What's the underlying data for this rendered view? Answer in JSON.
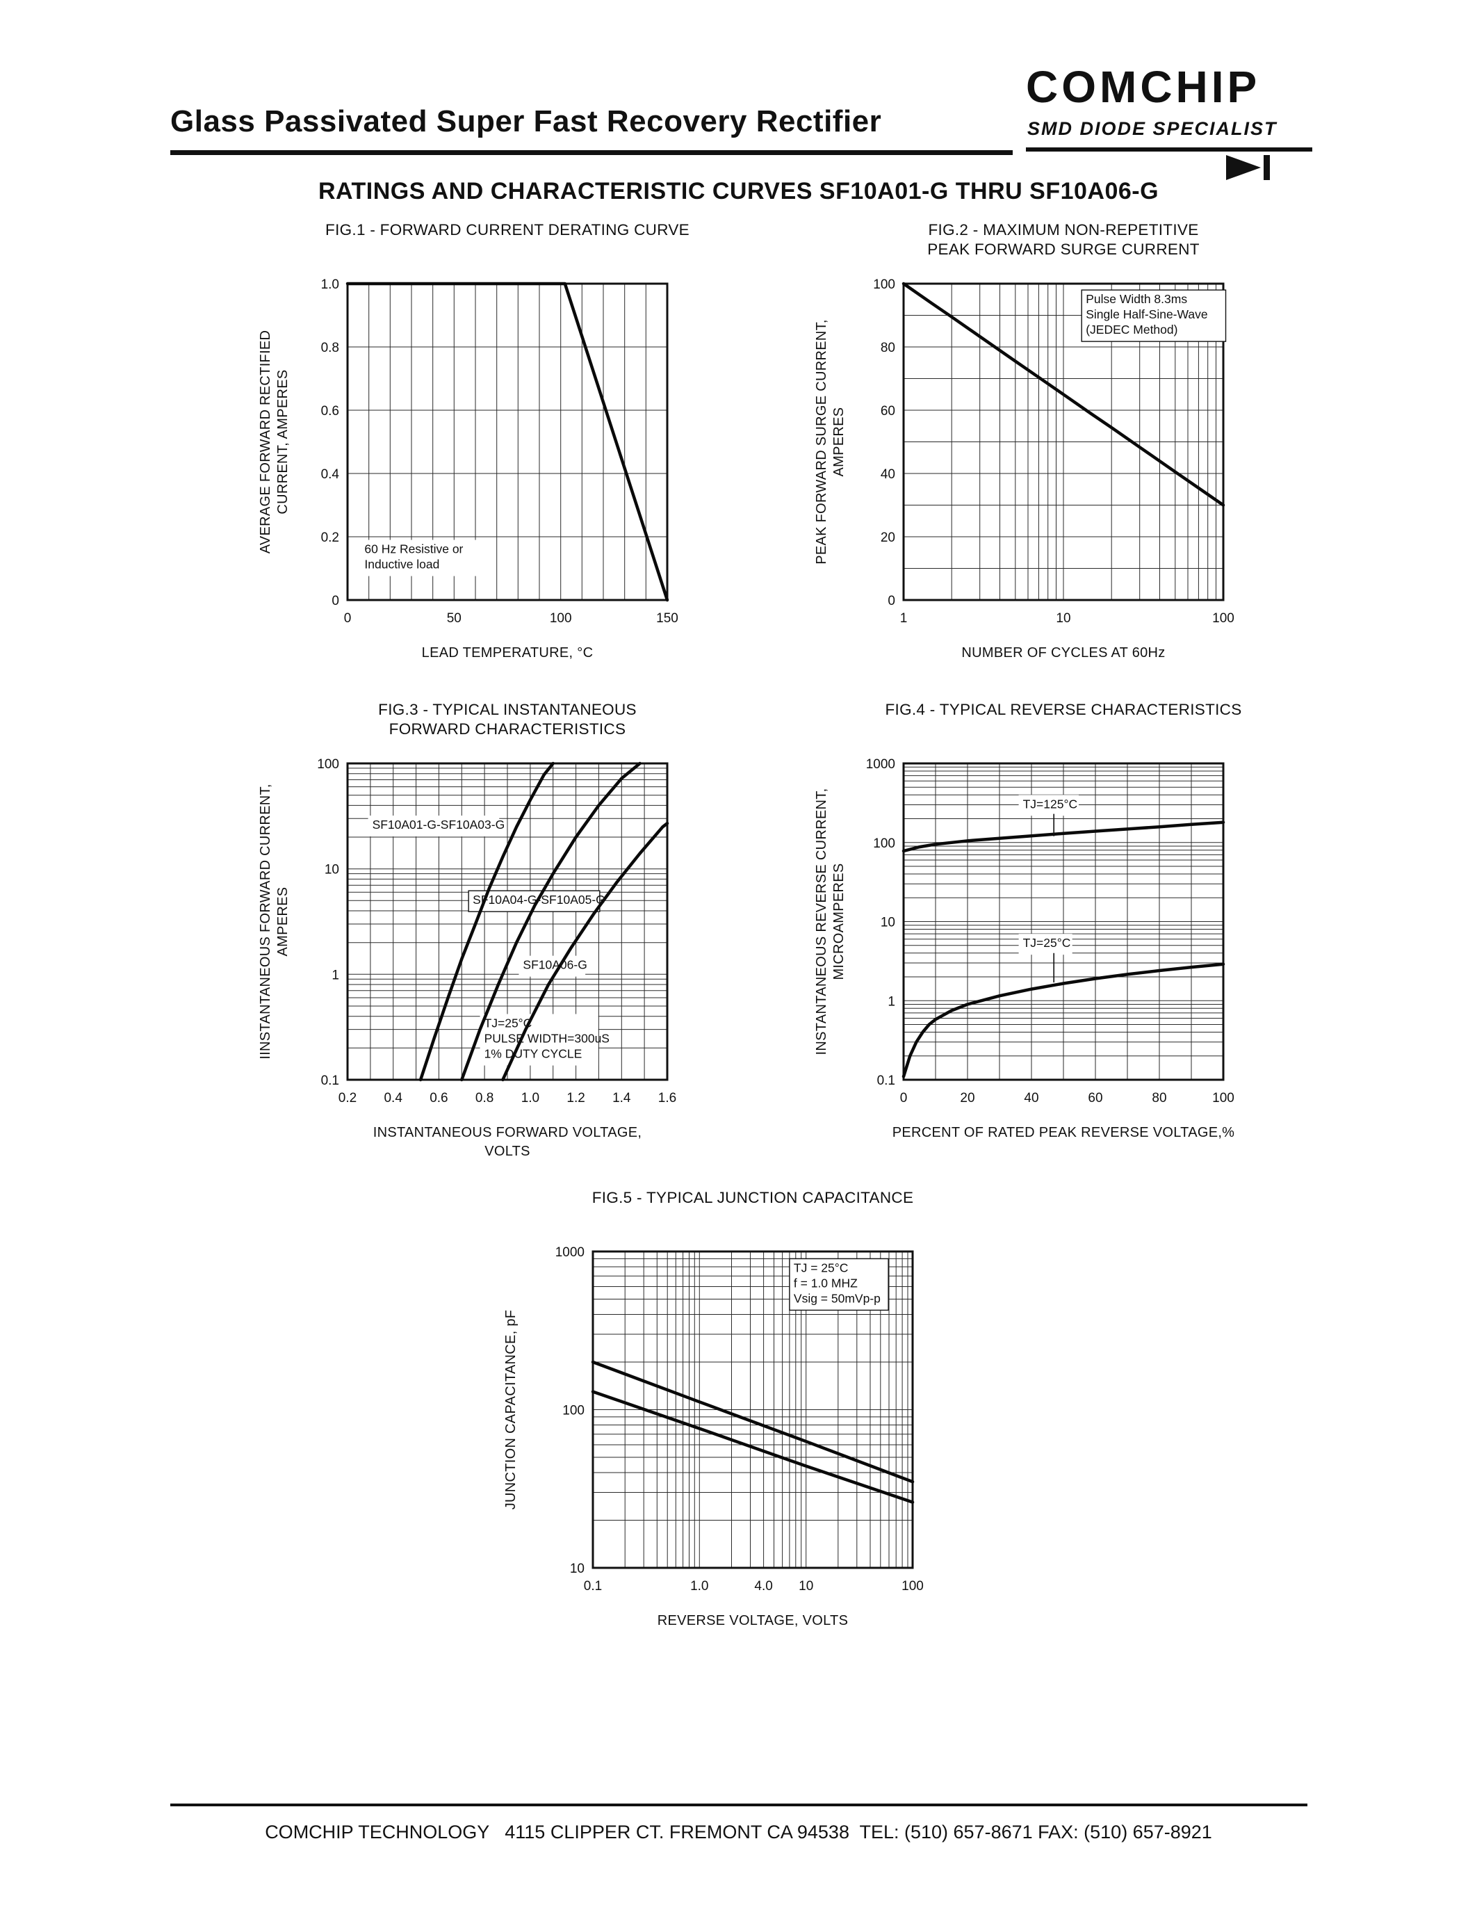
{
  "header": {
    "title": "Glass Passivated Super Fast Recovery Rectifier",
    "logo": "COMCHIP",
    "tagline": "SMD DIODE SPECIALIST",
    "section_heading": "RATINGS AND CHARACTERISTIC CURVES SF10A01-G THRU SF10A06-G"
  },
  "footer": {
    "text": "COMCHIP TECHNOLOGY   4115 CLIPPER CT. FREMONT CA 94538  TEL: (510) 657-8671 FAX: (510) 657-8921"
  },
  "chart_data": [
    {
      "type": "line",
      "title": [
        "FIG.1 - FORWARD CURRENT DERATING CURVE"
      ],
      "xlabel": [
        "LEAD TEMPERATURE, °C"
      ],
      "ylabel": [
        "AVERAGE FORWARD RECTIFIED",
        "CURRENT, AMPERES"
      ],
      "x": {
        "scale": "linear",
        "min": 0,
        "max": 150,
        "ticks": [
          0,
          50,
          100,
          150
        ],
        "labels": [
          "0",
          "50",
          "100",
          "150"
        ],
        "minor": 10
      },
      "y": {
        "scale": "linear",
        "min": 0,
        "max": 1,
        "ticks": [
          0,
          0.2,
          0.4,
          0.6,
          0.8,
          1
        ],
        "labels": [
          "0",
          "0.2",
          "0.4",
          "0.6",
          "0.8",
          "1.0"
        ],
        "minor": 0.2
      },
      "series": [
        {
          "name": "forward-current-derating",
          "points": [
            [
              0,
              1
            ],
            [
              102,
              1
            ],
            [
              150,
              0
            ]
          ]
        }
      ],
      "notes": [
        {
          "lines": [
            "60 Hz Resistive or",
            "Inductive load"
          ],
          "x": 6,
          "y": 0.19,
          "boxed": false
        }
      ]
    },
    {
      "type": "line",
      "title": [
        "FIG.2 - MAXIMUM NON-REPETITIVE",
        "PEAK FORWARD SURGE CURRENT"
      ],
      "xlabel": [
        "NUMBER OF CYCLES AT 60Hz"
      ],
      "ylabel": [
        "PEAK FORWARD SURGE CURRENT,",
        "AMPERES"
      ],
      "x": {
        "scale": "log",
        "min": 1,
        "max": 100,
        "ticks": [
          1,
          10,
          100
        ],
        "labels": [
          "1",
          "10",
          "100"
        ]
      },
      "y": {
        "scale": "linear",
        "min": 0,
        "max": 100,
        "ticks": [
          0,
          20,
          40,
          60,
          80,
          100
        ],
        "labels": [
          "0",
          "20",
          "40",
          "60",
          "80",
          "100"
        ],
        "minor": 10
      },
      "series": [
        {
          "name": "peak-surge-current",
          "points": [
            [
              1,
              100
            ],
            [
              1.5,
              93.8
            ],
            [
              2,
              89.5
            ],
            [
              3,
              83.3
            ],
            [
              5,
              75.5
            ],
            [
              7,
              70.4
            ],
            [
              10,
              65
            ],
            [
              15,
              58.8
            ],
            [
              20,
              54.5
            ],
            [
              30,
              48.3
            ],
            [
              50,
              40.5
            ],
            [
              70,
              35.4
            ],
            [
              100,
              30
            ]
          ]
        }
      ],
      "notes": [
        {
          "lines": [
            "Pulse Width 8.3ms",
            "Single Half-Sine-Wave",
            "(JEDEC Method)"
          ],
          "x": 13,
          "y": 98,
          "boxed": true
        }
      ]
    },
    {
      "type": "line",
      "title": [
        "FIG.3 - TYPICAL INSTANTANEOUS",
        "FORWARD CHARACTERISTICS"
      ],
      "xlabel": [
        "INSTANTANEOUS FORWARD VOLTAGE,",
        "VOLTS"
      ],
      "ylabel": [
        "IINSTANTANEOUS FORWARD CURRENT,",
        "AMPERES"
      ],
      "x": {
        "scale": "linear",
        "min": 0.2,
        "max": 1.6,
        "ticks": [
          0.2,
          0.4,
          0.6,
          0.8,
          1.0,
          1.2,
          1.4,
          1.6
        ],
        "labels": [
          "0.2",
          "0.4",
          "0.6",
          "0.8",
          "1.0",
          "1.2",
          "1.4",
          "1.6"
        ],
        "minor": 0.1
      },
      "y": {
        "scale": "log",
        "min": 0.1,
        "max": 100,
        "ticks": [
          0.1,
          1,
          10,
          100
        ],
        "labels": [
          "0.1",
          "1",
          "10",
          "100"
        ]
      },
      "series": [
        {
          "name": "SF10A01-G-SF10A03-G",
          "points": [
            [
              0.52,
              0.1
            ],
            [
              0.58,
              0.25
            ],
            [
              0.64,
              0.6
            ],
            [
              0.7,
              1.4
            ],
            [
              0.76,
              3
            ],
            [
              0.82,
              6.5
            ],
            [
              0.88,
              13
            ],
            [
              0.94,
              25
            ],
            [
              1.0,
              45
            ],
            [
              1.06,
              78
            ],
            [
              1.1,
              100
            ]
          ]
        },
        {
          "name": "SF10A04-G-SF10A05-G",
          "points": [
            [
              0.7,
              0.1
            ],
            [
              0.78,
              0.3
            ],
            [
              0.86,
              0.8
            ],
            [
              0.94,
              2
            ],
            [
              1.02,
              4.5
            ],
            [
              1.1,
              9
            ],
            [
              1.2,
              20
            ],
            [
              1.3,
              40
            ],
            [
              1.4,
              72
            ],
            [
              1.48,
              100
            ]
          ]
        },
        {
          "name": "SF10A06-G",
          "points": [
            [
              0.88,
              0.1
            ],
            [
              0.98,
              0.3
            ],
            [
              1.08,
              0.8
            ],
            [
              1.18,
              1.8
            ],
            [
              1.28,
              3.8
            ],
            [
              1.38,
              7.5
            ],
            [
              1.48,
              14
            ],
            [
              1.58,
              25
            ],
            [
              1.6,
              27
            ]
          ]
        }
      ],
      "notes": [
        {
          "lines": [
            "SF10A01-G-SF10A03-G"
          ],
          "x": 0.29,
          "y": 32,
          "boxed": false
        },
        {
          "lines": [
            "SF10A04-G-SF10A05-G"
          ],
          "x": 0.73,
          "y": 6.2,
          "boxed": true
        },
        {
          "lines": [
            "SF10A06-G"
          ],
          "x": 0.95,
          "y": 1.5,
          "boxed": false
        },
        {
          "lines": [
            "TJ=25°C",
            "PULSE WIDTH=300uS",
            "1% DUTY CYCLE"
          ],
          "x": 0.78,
          "y": 0.42,
          "boxed": false
        }
      ]
    },
    {
      "type": "line",
      "title": [
        "FIG.4 - TYPICAL REVERSE CHARACTERISTICS"
      ],
      "xlabel": [
        "PERCENT OF RATED PEAK REVERSE VOLTAGE,%"
      ],
      "ylabel": [
        "INSTANTANEOUS REVERSE CURRENT,",
        "MICROAMPERES"
      ],
      "x": {
        "scale": "linear",
        "min": 0,
        "max": 100,
        "ticks": [
          0,
          20,
          40,
          60,
          80,
          100
        ],
        "labels": [
          "0",
          "20",
          "40",
          "60",
          "80",
          "100"
        ],
        "minor": 10
      },
      "y": {
        "scale": "log",
        "min": 0.1,
        "max": 1000,
        "ticks": [
          0.1,
          1,
          10,
          100,
          1000
        ],
        "labels": [
          "0.1",
          "1",
          "10",
          "100",
          "1000"
        ]
      },
      "series": [
        {
          "name": "TJ-125C",
          "points": [
            [
              0,
              78
            ],
            [
              5,
              88
            ],
            [
              10,
              95
            ],
            [
              20,
              105
            ],
            [
              30,
              113
            ],
            [
              40,
              121
            ],
            [
              50,
              130
            ],
            [
              60,
              139
            ],
            [
              70,
              148
            ],
            [
              80,
              158
            ],
            [
              90,
              169
            ],
            [
              100,
              180
            ]
          ]
        },
        {
          "name": "TJ-25C",
          "points": [
            [
              0,
              0.11
            ],
            [
              2,
              0.2
            ],
            [
              4,
              0.3
            ],
            [
              6,
              0.4
            ],
            [
              8,
              0.5
            ],
            [
              10,
              0.58
            ],
            [
              15,
              0.75
            ],
            [
              20,
              0.9
            ],
            [
              30,
              1.15
            ],
            [
              40,
              1.4
            ],
            [
              50,
              1.65
            ],
            [
              60,
              1.9
            ],
            [
              70,
              2.15
            ],
            [
              80,
              2.4
            ],
            [
              90,
              2.65
            ],
            [
              100,
              2.9
            ]
          ]
        }
      ],
      "notes": [
        {
          "lines": [
            "TJ=125°C"
          ],
          "x": 36,
          "y": 400,
          "boxed": false,
          "leader": [
            47,
            230,
            120
          ]
        },
        {
          "lines": [
            "TJ=25°C"
          ],
          "x": 36,
          "y": 7,
          "boxed": false,
          "leader": [
            47,
            4,
            1.7
          ]
        }
      ]
    },
    {
      "type": "line",
      "title": [
        "FIG.5 - TYPICAL JUNCTION CAPACITANCE"
      ],
      "xlabel": [
        "REVERSE VOLTAGE, VOLTS"
      ],
      "ylabel": [
        "JUNCTION CAPACITANCE, pF"
      ],
      "x": {
        "scale": "log",
        "min": 0.1,
        "max": 100,
        "ticks": [
          0.1,
          1,
          4,
          10,
          100
        ],
        "labels": [
          "0.1",
          "1.0",
          "4.0",
          "10",
          "100"
        ]
      },
      "y": {
        "scale": "log",
        "min": 10,
        "max": 1000,
        "ticks": [
          10,
          100,
          1000
        ],
        "labels": [
          "10",
          "100",
          "1000"
        ]
      },
      "series": [
        {
          "name": "junction-capacitance-upper",
          "points": [
            [
              0.1,
              200
            ],
            [
              1,
              112
            ],
            [
              10,
              63
            ],
            [
              100,
              35
            ]
          ]
        },
        {
          "name": "junction-capacitance-lower",
          "points": [
            [
              0.1,
              130
            ],
            [
              1,
              76
            ],
            [
              10,
              44
            ],
            [
              100,
              26
            ]
          ]
        }
      ],
      "notes": [
        {
          "lines": [
            "TJ = 25°C",
            "f = 1.0 MHZ",
            "Vsig = 50mVp-p"
          ],
          "x": 7,
          "y": 900,
          "boxed": true
        }
      ]
    }
  ]
}
